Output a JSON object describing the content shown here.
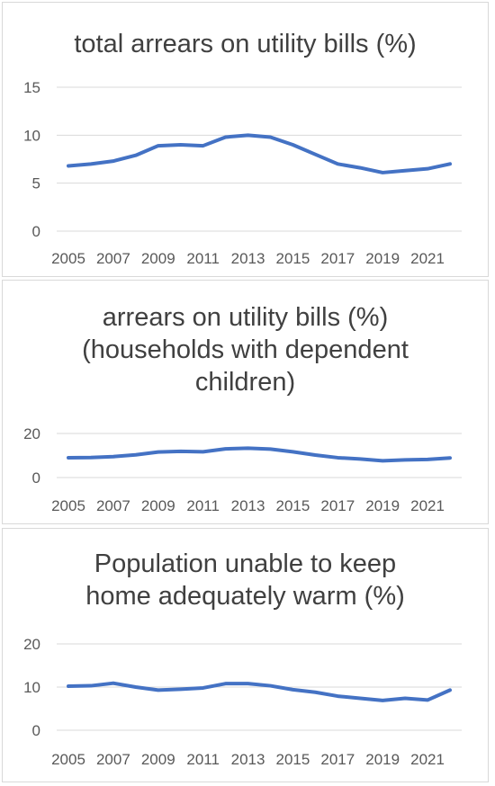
{
  "chart_data": [
    {
      "type": "line",
      "title": "total arrears on utility bills (%)",
      "x": [
        2005,
        2006,
        2007,
        2008,
        2009,
        2010,
        2011,
        2012,
        2013,
        2014,
        2015,
        2016,
        2017,
        2018,
        2019,
        2020,
        2021,
        2022
      ],
      "x_tick_labels": [
        "2005",
        "2007",
        "2009",
        "2011",
        "2013",
        "2015",
        "2017",
        "2019",
        "2021"
      ],
      "series": [
        {
          "values": [
            6.8,
            7.0,
            7.3,
            7.9,
            8.9,
            9.0,
            8.9,
            9.8,
            10.0,
            9.8,
            9.0,
            8.0,
            7.0,
            6.6,
            6.1,
            6.3,
            6.5,
            7.0
          ]
        }
      ],
      "ylim": [
        0,
        15
      ],
      "y_ticks": [
        0,
        5,
        10,
        15
      ],
      "grid": true,
      "color": "#4472c4"
    },
    {
      "type": "line",
      "title": "arrears on utility bills (%) (households with dependent children)",
      "title_lines": [
        "arrears on utility bills (%)",
        "(households with dependent",
        "children)"
      ],
      "x": [
        2005,
        2006,
        2007,
        2008,
        2009,
        2010,
        2011,
        2012,
        2013,
        2014,
        2015,
        2016,
        2017,
        2018,
        2019,
        2020,
        2021,
        2022
      ],
      "x_tick_labels": [
        "2005",
        "2007",
        "2009",
        "2011",
        "2013",
        "2015",
        "2017",
        "2019",
        "2021"
      ],
      "series": [
        {
          "values": [
            9.0,
            9.1,
            9.5,
            10.3,
            11.6,
            11.9,
            11.7,
            13.0,
            13.3,
            12.9,
            11.7,
            10.2,
            9.0,
            8.4,
            7.6,
            8.0,
            8.2,
            8.9
          ]
        }
      ],
      "ylim": [
        0,
        20
      ],
      "y_ticks": [
        0,
        20
      ],
      "grid": true,
      "color": "#4472c4"
    },
    {
      "type": "line",
      "title": "Population unable to keep home adequately warm (%)",
      "title_lines": [
        "Population unable to keep",
        "home adequately warm (%)"
      ],
      "x": [
        2005,
        2006,
        2007,
        2008,
        2009,
        2010,
        2011,
        2012,
        2013,
        2014,
        2015,
        2016,
        2017,
        2018,
        2019,
        2020,
        2021,
        2022
      ],
      "x_tick_labels": [
        "2005",
        "2007",
        "2009",
        "2011",
        "2013",
        "2015",
        "2017",
        "2019",
        "2021"
      ],
      "series": [
        {
          "values": [
            10.2,
            10.3,
            10.9,
            10.0,
            9.3,
            9.5,
            9.8,
            10.8,
            10.8,
            10.3,
            9.4,
            8.8,
            7.9,
            7.4,
            6.9,
            7.4,
            7.0,
            9.3
          ]
        }
      ],
      "ylim": [
        0,
        20
      ],
      "y_ticks": [
        0,
        10,
        20
      ],
      "grid": true,
      "color": "#4472c4"
    }
  ]
}
